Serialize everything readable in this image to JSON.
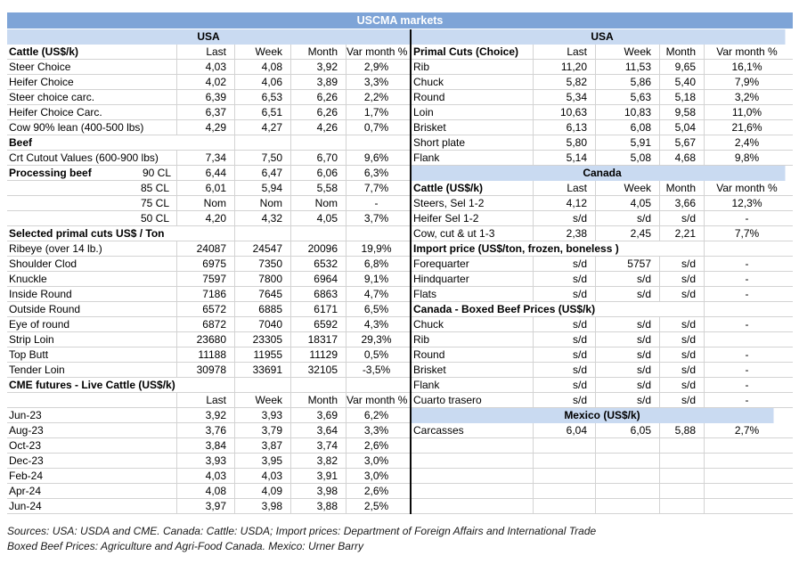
{
  "title": "USCMA markets",
  "colors": {
    "band_dark": "#7ea4d7",
    "band_light": "#c9daf1",
    "grid": "#d3d3d3",
    "divider": "#0a0a0a"
  },
  "columns": [
    "Last",
    "Week",
    "Month",
    "Var month %"
  ],
  "left_table": {
    "rows": [
      {
        "t": "band",
        "label": "USA"
      },
      {
        "t": "header",
        "label": "Cattle (US$/k)",
        "v": [
          "Last",
          "Week",
          "Month",
          "Var month %"
        ]
      },
      {
        "t": "data",
        "label": "Steer Choice",
        "v": [
          "4,03",
          "4,08",
          "3,92",
          "2,9%"
        ]
      },
      {
        "t": "data",
        "label": "Heifer Choice",
        "v": [
          "4,02",
          "4,06",
          "3,89",
          "3,3%"
        ]
      },
      {
        "t": "data",
        "label": "Steer choice carc.",
        "v": [
          "6,39",
          "6,53",
          "6,26",
          "2,2%"
        ]
      },
      {
        "t": "data",
        "label": "Heifer Choice Carc.",
        "v": [
          "6,37",
          "6,51",
          "6,26",
          "1,7%"
        ]
      },
      {
        "t": "data",
        "label": "Cow 90% lean (400-500 lbs)",
        "v": [
          "4,29",
          "4,27",
          "4,26",
          "0,7%"
        ]
      },
      {
        "t": "section",
        "label": "Beef"
      },
      {
        "t": "data",
        "label": "Crt Cutout Values (600-900 lbs)",
        "v": [
          "7,34",
          "7,50",
          "6,70",
          "9,6%"
        ]
      },
      {
        "t": "data",
        "label": "Processing beef",
        "bold": true,
        "sub": "90 CL",
        "v": [
          "6,44",
          "6,47",
          "6,06",
          "6,3%"
        ]
      },
      {
        "t": "data",
        "label": "85 CL",
        "align": "right",
        "v": [
          "6,01",
          "5,94",
          "5,58",
          "7,7%"
        ]
      },
      {
        "t": "data",
        "label": "75 CL",
        "align": "right",
        "v": [
          "Nom",
          "Nom",
          "Nom",
          "-"
        ]
      },
      {
        "t": "data",
        "label": "50 CL",
        "align": "right",
        "v": [
          "4,20",
          "4,32",
          "4,05",
          "3,7%"
        ]
      },
      {
        "t": "section",
        "label": "Selected primal cuts US$ / Ton"
      },
      {
        "t": "data",
        "label": "Ribeye (over 14 lb.)",
        "v": [
          "24087",
          "24547",
          "20096",
          "19,9%"
        ]
      },
      {
        "t": "data",
        "label": "Shoulder Clod",
        "v": [
          "6975",
          "7350",
          "6532",
          "6,8%"
        ]
      },
      {
        "t": "data",
        "label": "Knuckle",
        "v": [
          "7597",
          "7800",
          "6964",
          "9,1%"
        ]
      },
      {
        "t": "data",
        "label": "Inside Round",
        "v": [
          "7186",
          "7645",
          "6863",
          "4,7%"
        ]
      },
      {
        "t": "data",
        "label": "Outside Round",
        "v": [
          "6572",
          "6885",
          "6171",
          "6,5%"
        ]
      },
      {
        "t": "data",
        "label": "Eye of round",
        "v": [
          "6872",
          "7040",
          "6592",
          "4,3%"
        ]
      },
      {
        "t": "data",
        "label": "Strip Loin",
        "v": [
          "23680",
          "23305",
          "18317",
          "29,3%"
        ]
      },
      {
        "t": "data",
        "label": "Top Butt",
        "v": [
          "11188",
          "11955",
          "11129",
          "0,5%"
        ]
      },
      {
        "t": "data",
        "label": "Tender Loin",
        "v": [
          "30978",
          "33691",
          "32105",
          "-3,5%"
        ]
      },
      {
        "t": "section",
        "label": "CME futures - Live Cattle (US$/k)"
      },
      {
        "t": "header",
        "label": "",
        "v": [
          "Last",
          "Week",
          "Month",
          "Var month %"
        ]
      },
      {
        "t": "data",
        "label": "Jun-23",
        "v": [
          "3,92",
          "3,93",
          "3,69",
          "6,2%"
        ]
      },
      {
        "t": "data",
        "label": "Aug-23",
        "v": [
          "3,76",
          "3,79",
          "3,64",
          "3,3%"
        ]
      },
      {
        "t": "data",
        "label": "Oct-23",
        "v": [
          "3,84",
          "3,87",
          "3,74",
          "2,6%"
        ]
      },
      {
        "t": "data",
        "label": "Dec-23",
        "v": [
          "3,93",
          "3,95",
          "3,82",
          "3,0%"
        ]
      },
      {
        "t": "data",
        "label": "Feb-24",
        "v": [
          "4,03",
          "4,03",
          "3,91",
          "3,0%"
        ]
      },
      {
        "t": "data",
        "label": "Apr-24",
        "v": [
          "4,08",
          "4,09",
          "3,98",
          "2,6%"
        ]
      },
      {
        "t": "data",
        "label": "Jun-24",
        "v": [
          "3,97",
          "3,98",
          "3,88",
          "2,5%"
        ]
      }
    ]
  },
  "right_table": {
    "rows": [
      {
        "t": "band",
        "label": "USA",
        "notch": 98
      },
      {
        "t": "header",
        "label": "Primal Cuts (Choice)",
        "v": [
          "Last",
          "Week",
          "Month",
          "Var month %"
        ]
      },
      {
        "t": "data",
        "label": "Rib",
        "v": [
          "11,20",
          "11,53",
          "9,65",
          "16,1%"
        ]
      },
      {
        "t": "data",
        "label": "Chuck",
        "v": [
          "5,82",
          "5,86",
          "5,40",
          "7,9%"
        ]
      },
      {
        "t": "data",
        "label": "Round",
        "v": [
          "5,34",
          "5,63",
          "5,18",
          "3,2%"
        ]
      },
      {
        "t": "data",
        "label": "Loin",
        "v": [
          "10,63",
          "10,83",
          "9,58",
          "11,0%"
        ]
      },
      {
        "t": "data",
        "label": "Brisket",
        "v": [
          "6,13",
          "6,08",
          "5,04",
          "21,6%"
        ]
      },
      {
        "t": "data",
        "label": "Short plate",
        "v": [
          "5,80",
          "5,91",
          "5,67",
          "2,4%"
        ]
      },
      {
        "t": "data",
        "label": "Flank",
        "v": [
          "5,14",
          "5,08",
          "4,68",
          "9,8%"
        ]
      },
      {
        "t": "band",
        "label": "Canada",
        "notch": 98
      },
      {
        "t": "header",
        "label": "Cattle (US$/k)",
        "v": [
          "Last",
          "Week",
          "Month",
          "Var month %"
        ]
      },
      {
        "t": "data",
        "label": "Steers, Sel 1-2",
        "v": [
          "4,12",
          "4,05",
          "3,66",
          "12,3%"
        ]
      },
      {
        "t": "data",
        "label": "Heifer Sel 1-2",
        "v": [
          "s/d",
          "s/d",
          "s/d",
          "-"
        ]
      },
      {
        "t": "data",
        "label": "Cow, cut & ut 1-3",
        "v": [
          "2,38",
          "2,45",
          "2,21",
          "7,7%"
        ]
      },
      {
        "t": "section",
        "label": "Import price (US$/ton, frozen, boneless )"
      },
      {
        "t": "data",
        "label": "Forequarter",
        "v": [
          "s/d",
          "5757",
          "s/d",
          "-"
        ]
      },
      {
        "t": "data",
        "label": "Hindquarter",
        "v": [
          "s/d",
          "s/d",
          "s/d",
          "-"
        ]
      },
      {
        "t": "data",
        "label": "Flats",
        "v": [
          "s/d",
          "s/d",
          "s/d",
          "-"
        ]
      },
      {
        "t": "section",
        "label": "Canada - Boxed Beef Prices (US$/k)"
      },
      {
        "t": "data",
        "label": "Chuck",
        "v": [
          "s/d",
          "s/d",
          "s/d",
          "-"
        ]
      },
      {
        "t": "data",
        "label": "Rib",
        "v": [
          "s/d",
          "s/d",
          "s/d",
          ""
        ]
      },
      {
        "t": "data",
        "label": "Round",
        "v": [
          "s/d",
          "s/d",
          "s/d",
          "-"
        ]
      },
      {
        "t": "data",
        "label": "Brisket",
        "v": [
          "s/d",
          "s/d",
          "s/d",
          "-"
        ]
      },
      {
        "t": "data",
        "label": "Flank",
        "v": [
          "s/d",
          "s/d",
          "s/d",
          "-"
        ]
      },
      {
        "t": "data",
        "label": "Cuarto trasero",
        "v": [
          "s/d",
          "s/d",
          "s/d",
          "-"
        ]
      },
      {
        "t": "band",
        "label": "Mexico (US$/k)",
        "notch": 95
      },
      {
        "t": "data",
        "label": "Carcasses",
        "v": [
          "6,04",
          "6,05",
          "5,88",
          "2,7%"
        ]
      },
      {
        "t": "empty"
      },
      {
        "t": "empty"
      },
      {
        "t": "empty"
      },
      {
        "t": "empty"
      },
      {
        "t": "empty"
      }
    ]
  },
  "footer": {
    "line1": "Sources: USA: USDA and CME. Canada: Cattle: USDA; Import prices: Department of Foreign Affairs and International Trade",
    "line2": "Boxed Beef Prices: Agriculture and Agri-Food Canada. Mexico: Urner Barry"
  }
}
